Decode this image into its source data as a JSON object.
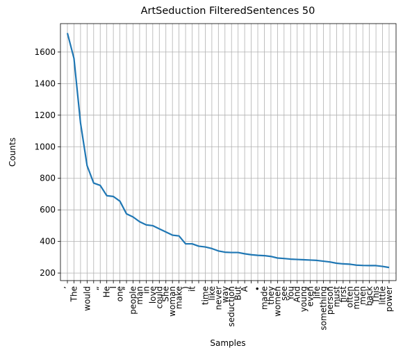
{
  "chart_data": {
    "type": "line",
    "title": "ArtSeduction FilteredSentences 50",
    "x_label": "Samples",
    "y_label": "Counts",
    "categories": [
      "’",
      "The",
      null,
      "would",
      null,
      "“",
      "He",
      "I",
      "one",
      "”",
      "people",
      "man",
      "in",
      "love",
      "could",
      "She",
      "woman",
      "make",
      ")",
      "it",
      null,
      "time",
      "like",
      "never",
      "way",
      "seduction",
      "But",
      "A",
      null,
      "•",
      "made",
      "they",
      "women",
      "see",
      "You",
      "And",
      "young",
      "even",
      "life",
      "something",
      "person",
      "must",
      "first",
      "often",
      "much",
      "men",
      "back",
      "This",
      "little",
      "power"
    ],
    "series": [
      {
        "name": "Counts",
        "color": "#1f77b4",
        "values": [
          1720,
          1560,
          1150,
          880,
          770,
          755,
          690,
          685,
          655,
          575,
          555,
          525,
          505,
          500,
          480,
          460,
          440,
          435,
          385,
          385,
          370,
          365,
          355,
          340,
          332,
          330,
          330,
          322,
          316,
          312,
          310,
          305,
          295,
          292,
          288,
          286,
          284,
          282,
          280,
          275,
          270,
          262,
          258,
          256,
          250,
          248,
          247,
          247,
          242,
          235
        ]
      }
    ],
    "ylim": [
      152,
      1780
    ],
    "yticks": [
      200,
      400,
      600,
      800,
      1000,
      1200,
      1400,
      1600
    ],
    "grid": true
  }
}
